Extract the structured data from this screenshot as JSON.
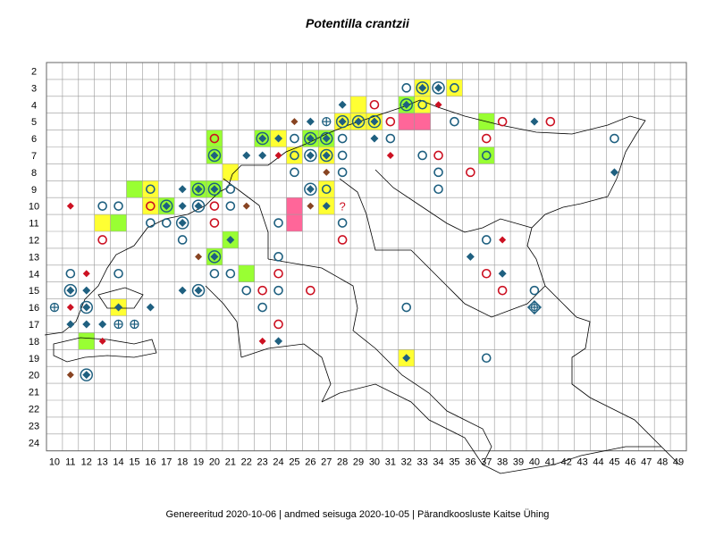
{
  "title": "Potentilla crantzii",
  "footer": "Genereeritud 2020-10-06  |  andmed seisuga 2020-10-05  |  Pärandkoosluste Kaitse Ühing",
  "x_ticks": [
    "10",
    "11",
    "12",
    "13",
    "14",
    "15",
    "16",
    "17",
    "18",
    "19",
    "20",
    "21",
    "22",
    "23",
    "24",
    "25",
    "26",
    "27",
    "28",
    "29",
    "30",
    "31",
    "32",
    "33",
    "34",
    "35",
    "36",
    "37",
    "38",
    "39",
    "40",
    "41",
    "42",
    "43",
    "44",
    "45",
    "46",
    "47",
    "48",
    "49"
  ],
  "y_ticks": [
    "2",
    "3",
    "4",
    "5",
    "6",
    "7",
    "8",
    "9",
    "10",
    "11",
    "12",
    "13",
    "14",
    "15",
    "16",
    "17",
    "18",
    "19",
    "20",
    "21",
    "22",
    "23",
    "24"
  ],
  "colors": {
    "yellow": "#ffff33",
    "green": "#99ff33",
    "pink": "#ff6699",
    "blue": "#1f6080",
    "red": "#cc1122",
    "brown": "#884422"
  },
  "filled_cells": [
    {
      "col": 33,
      "row": 3,
      "fill": "yellow"
    },
    {
      "col": 35,
      "row": 3,
      "fill": "yellow"
    },
    {
      "col": 29,
      "row": 4,
      "fill": "yellow"
    },
    {
      "col": 33,
      "row": 4,
      "fill": "yellow"
    },
    {
      "col": 32,
      "row": 4,
      "fill": "green"
    },
    {
      "col": 28,
      "row": 5,
      "fill": "yellow"
    },
    {
      "col": 29,
      "row": 5,
      "fill": "yellow"
    },
    {
      "col": 30,
      "row": 5,
      "fill": "yellow"
    },
    {
      "col": 32,
      "row": 5,
      "fill": "pink"
    },
    {
      "col": 33,
      "row": 5,
      "fill": "pink"
    },
    {
      "col": 37,
      "row": 5,
      "fill": "green"
    },
    {
      "col": 20,
      "row": 6,
      "fill": "green"
    },
    {
      "col": 23,
      "row": 6,
      "fill": "green"
    },
    {
      "col": 24,
      "row": 6,
      "fill": "yellow"
    },
    {
      "col": 26,
      "row": 6,
      "fill": "green"
    },
    {
      "col": 27,
      "row": 6,
      "fill": "green"
    },
    {
      "col": 20,
      "row": 7,
      "fill": "green"
    },
    {
      "col": 25,
      "row": 7,
      "fill": "yellow"
    },
    {
      "col": 27,
      "row": 7,
      "fill": "yellow"
    },
    {
      "col": 37,
      "row": 7,
      "fill": "green"
    },
    {
      "col": 21,
      "row": 8,
      "fill": "yellow"
    },
    {
      "col": 15,
      "row": 9,
      "fill": "green"
    },
    {
      "col": 16,
      "row": 9,
      "fill": "yellow"
    },
    {
      "col": 19,
      "row": 9,
      "fill": "green"
    },
    {
      "col": 20,
      "row": 9,
      "fill": "green"
    },
    {
      "col": 27,
      "row": 9,
      "fill": "yellow"
    },
    {
      "col": 16,
      "row": 10,
      "fill": "yellow"
    },
    {
      "col": 17,
      "row": 10,
      "fill": "green"
    },
    {
      "col": 25,
      "row": 10,
      "fill": "pink"
    },
    {
      "col": 27,
      "row": 10,
      "fill": "yellow"
    },
    {
      "col": 13,
      "row": 11,
      "fill": "yellow"
    },
    {
      "col": 14,
      "row": 11,
      "fill": "green"
    },
    {
      "col": 25,
      "row": 11,
      "fill": "pink"
    },
    {
      "col": 21,
      "row": 12,
      "fill": "green"
    },
    {
      "col": 20,
      "row": 13,
      "fill": "green"
    },
    {
      "col": 22,
      "row": 14,
      "fill": "green"
    },
    {
      "col": 14,
      "row": 16,
      "fill": "yellow"
    },
    {
      "col": 12,
      "row": 18,
      "fill": "green"
    },
    {
      "col": 32,
      "row": 19,
      "fill": "yellow"
    }
  ],
  "markers": [
    {
      "col": 32,
      "row": 3,
      "type": "circle-blue"
    },
    {
      "col": 33,
      "row": 3,
      "type": "ring-diamond"
    },
    {
      "col": 34,
      "row": 3,
      "type": "ring-diamond"
    },
    {
      "col": 35,
      "row": 3,
      "type": "circle-blue"
    },
    {
      "col": 28,
      "row": 4,
      "type": "diamond-blue"
    },
    {
      "col": 30,
      "row": 4,
      "type": "circle-red"
    },
    {
      "col": 32,
      "row": 4,
      "type": "ring-diamond"
    },
    {
      "col": 33,
      "row": 4,
      "type": "circle-blue"
    },
    {
      "col": 34,
      "row": 4,
      "type": "diamond-red"
    },
    {
      "col": 27,
      "row": 5,
      "type": "crosshair"
    },
    {
      "col": 28,
      "row": 5,
      "type": "ring-diamond"
    },
    {
      "col": 29,
      "row": 5,
      "type": "ring-diamond"
    },
    {
      "col": 30,
      "row": 5,
      "type": "ring-diamond"
    },
    {
      "col": 31,
      "row": 5,
      "type": "circle-red"
    },
    {
      "col": 35,
      "row": 5,
      "type": "circle-blue"
    },
    {
      "col": 38,
      "row": 5,
      "type": "circle-red"
    },
    {
      "col": 40,
      "row": 5,
      "type": "diamond-blue"
    },
    {
      "col": 41,
      "row": 5,
      "type": "circle-red"
    },
    {
      "col": 25,
      "row": 5,
      "type": "diamond-brown"
    },
    {
      "col": 26,
      "row": 5,
      "type": "diamond-blue"
    },
    {
      "col": 20,
      "row": 6,
      "type": "circle-red"
    },
    {
      "col": 23,
      "row": 6,
      "type": "ring-diamond"
    },
    {
      "col": 24,
      "row": 6,
      "type": "diamond-blue"
    },
    {
      "col": 25,
      "row": 6,
      "type": "circle-blue"
    },
    {
      "col": 26,
      "row": 6,
      "type": "ring-diamond"
    },
    {
      "col": 27,
      "row": 6,
      "type": "ring-diamond"
    },
    {
      "col": 28,
      "row": 6,
      "type": "circle-blue"
    },
    {
      "col": 30,
      "row": 6,
      "type": "diamond-blue"
    },
    {
      "col": 31,
      "row": 6,
      "type": "circle-blue"
    },
    {
      "col": 37,
      "row": 6,
      "type": "circle-red"
    },
    {
      "col": 45,
      "row": 6,
      "type": "circle-blue"
    },
    {
      "col": 20,
      "row": 7,
      "type": "ring-diamond"
    },
    {
      "col": 22,
      "row": 7,
      "type": "diamond-blue"
    },
    {
      "col": 23,
      "row": 7,
      "type": "diamond-blue"
    },
    {
      "col": 24,
      "row": 7,
      "type": "diamond-red"
    },
    {
      "col": 25,
      "row": 7,
      "type": "circle-blue"
    },
    {
      "col": 26,
      "row": 7,
      "type": "ring-diamond"
    },
    {
      "col": 27,
      "row": 7,
      "type": "ring-diamond"
    },
    {
      "col": 28,
      "row": 7,
      "type": "circle-blue"
    },
    {
      "col": 31,
      "row": 7,
      "type": "diamond-red"
    },
    {
      "col": 33,
      "row": 7,
      "type": "circle-blue"
    },
    {
      "col": 34,
      "row": 7,
      "type": "circle-red"
    },
    {
      "col": 37,
      "row": 7,
      "type": "circle-blue"
    },
    {
      "col": 25,
      "row": 8,
      "type": "circle-blue"
    },
    {
      "col": 27,
      "row": 8,
      "type": "diamond-brown"
    },
    {
      "col": 28,
      "row": 8,
      "type": "circle-blue"
    },
    {
      "col": 34,
      "row": 8,
      "type": "circle-blue"
    },
    {
      "col": 36,
      "row": 8,
      "type": "circle-red"
    },
    {
      "col": 45,
      "row": 8,
      "type": "diamond-blue"
    },
    {
      "col": 16,
      "row": 9,
      "type": "circle-blue"
    },
    {
      "col": 18,
      "row": 9,
      "type": "diamond-blue"
    },
    {
      "col": 19,
      "row": 9,
      "type": "ring-diamond"
    },
    {
      "col": 20,
      "row": 9,
      "type": "ring-diamond"
    },
    {
      "col": 21,
      "row": 9,
      "type": "circle-blue"
    },
    {
      "col": 26,
      "row": 9,
      "type": "ring-diamond"
    },
    {
      "col": 27,
      "row": 9,
      "type": "circle-blue"
    },
    {
      "col": 34,
      "row": 9,
      "type": "circle-blue"
    },
    {
      "col": 11,
      "row": 10,
      "type": "diamond-red"
    },
    {
      "col": 13,
      "row": 10,
      "type": "circle-blue"
    },
    {
      "col": 14,
      "row": 10,
      "type": "circle-blue"
    },
    {
      "col": 16,
      "row": 10,
      "type": "circle-red"
    },
    {
      "col": 17,
      "row": 10,
      "type": "ring-diamond"
    },
    {
      "col": 18,
      "row": 10,
      "type": "diamond-blue"
    },
    {
      "col": 19,
      "row": 10,
      "type": "ring-diamond"
    },
    {
      "col": 20,
      "row": 10,
      "type": "circle-red"
    },
    {
      "col": 21,
      "row": 10,
      "type": "circle-blue"
    },
    {
      "col": 22,
      "row": 10,
      "type": "diamond-brown"
    },
    {
      "col": 26,
      "row": 10,
      "type": "diamond-brown"
    },
    {
      "col": 27,
      "row": 10,
      "type": "diamond-blue"
    },
    {
      "col": 28,
      "row": 10,
      "type": "question-red"
    },
    {
      "col": 16,
      "row": 11,
      "type": "circle-blue"
    },
    {
      "col": 17,
      "row": 11,
      "type": "circle-blue"
    },
    {
      "col": 18,
      "row": 11,
      "type": "ring-diamond"
    },
    {
      "col": 20,
      "row": 11,
      "type": "circle-red"
    },
    {
      "col": 24,
      "row": 11,
      "type": "circle-blue"
    },
    {
      "col": 28,
      "row": 11,
      "type": "circle-blue"
    },
    {
      "col": 13,
      "row": 12,
      "type": "circle-red"
    },
    {
      "col": 18,
      "row": 12,
      "type": "circle-blue"
    },
    {
      "col": 21,
      "row": 12,
      "type": "diamond-blue"
    },
    {
      "col": 28,
      "row": 12,
      "type": "circle-red"
    },
    {
      "col": 37,
      "row": 12,
      "type": "circle-blue"
    },
    {
      "col": 38,
      "row": 12,
      "type": "diamond-red"
    },
    {
      "col": 19,
      "row": 13,
      "type": "diamond-brown"
    },
    {
      "col": 20,
      "row": 13,
      "type": "ring-diamond"
    },
    {
      "col": 24,
      "row": 13,
      "type": "circle-blue"
    },
    {
      "col": 36,
      "row": 13,
      "type": "diamond-blue"
    },
    {
      "col": 11,
      "row": 14,
      "type": "circle-blue"
    },
    {
      "col": 12,
      "row": 14,
      "type": "diamond-red"
    },
    {
      "col": 14,
      "row": 14,
      "type": "circle-blue"
    },
    {
      "col": 20,
      "row": 14,
      "type": "circle-blue"
    },
    {
      "col": 21,
      "row": 14,
      "type": "circle-blue"
    },
    {
      "col": 24,
      "row": 14,
      "type": "circle-red"
    },
    {
      "col": 37,
      "row": 14,
      "type": "circle-red"
    },
    {
      "col": 38,
      "row": 14,
      "type": "diamond-blue"
    },
    {
      "col": 11,
      "row": 15,
      "type": "ring-diamond"
    },
    {
      "col": 12,
      "row": 15,
      "type": "diamond-blue"
    },
    {
      "col": 18,
      "row": 15,
      "type": "diamond-blue"
    },
    {
      "col": 19,
      "row": 15,
      "type": "ring-diamond"
    },
    {
      "col": 22,
      "row": 15,
      "type": "circle-blue"
    },
    {
      "col": 23,
      "row": 15,
      "type": "circle-red"
    },
    {
      "col": 24,
      "row": 15,
      "type": "circle-blue"
    },
    {
      "col": 26,
      "row": 15,
      "type": "circle-red"
    },
    {
      "col": 38,
      "row": 15,
      "type": "circle-red"
    },
    {
      "col": 40,
      "row": 15,
      "type": "circle-blue"
    },
    {
      "col": 10,
      "row": 16,
      "type": "crosshair"
    },
    {
      "col": 11,
      "row": 16,
      "type": "diamond-red"
    },
    {
      "col": 12,
      "row": 16,
      "type": "ring-diamond"
    },
    {
      "col": 14,
      "row": 16,
      "type": "diamond-blue"
    },
    {
      "col": 16,
      "row": 16,
      "type": "diamond-blue"
    },
    {
      "col": 23,
      "row": 16,
      "type": "circle-blue"
    },
    {
      "col": 32,
      "row": 16,
      "type": "circle-blue"
    },
    {
      "col": 40,
      "row": 16,
      "type": "ring-cross"
    },
    {
      "col": 11,
      "row": 17,
      "type": "diamond-blue"
    },
    {
      "col": 12,
      "row": 17,
      "type": "diamond-blue"
    },
    {
      "col": 13,
      "row": 17,
      "type": "diamond-blue"
    },
    {
      "col": 14,
      "row": 17,
      "type": "crosshair"
    },
    {
      "col": 15,
      "row": 17,
      "type": "crosshair"
    },
    {
      "col": 24,
      "row": 17,
      "type": "circle-red"
    },
    {
      "col": 13,
      "row": 18,
      "type": "diamond-red"
    },
    {
      "col": 23,
      "row": 18,
      "type": "diamond-red"
    },
    {
      "col": 24,
      "row": 18,
      "type": "diamond-blue"
    },
    {
      "col": 32,
      "row": 19,
      "type": "diamond-blue"
    },
    {
      "col": 37,
      "row": 19,
      "type": "circle-blue"
    },
    {
      "col": 11,
      "row": 20,
      "type": "diamond-brown"
    },
    {
      "col": 12,
      "row": 20,
      "type": "ring-diamond"
    }
  ]
}
